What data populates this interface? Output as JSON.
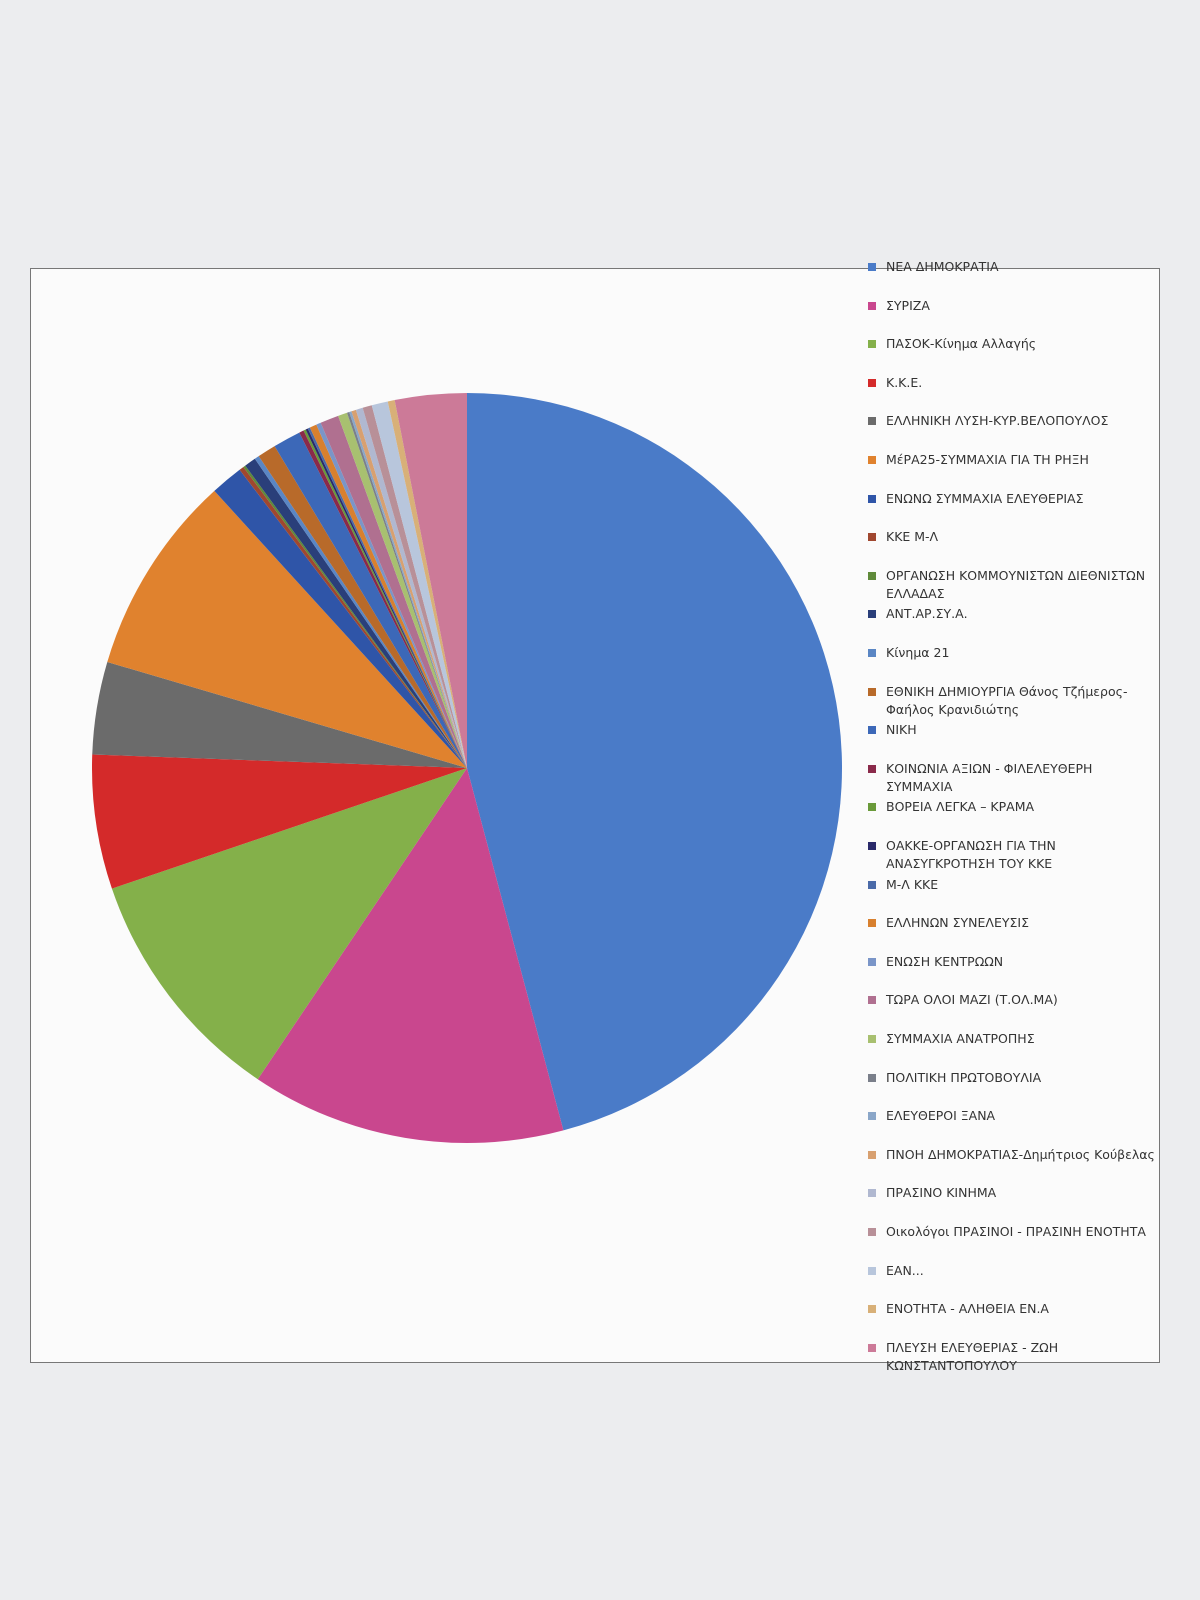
{
  "chart_data": {
    "type": "pie",
    "categories": [
      "ΝΕΑ ΔΗΜΟΚΡΑΤΙΑ",
      "ΣΥΡΙΖΑ",
      "ΠΑΣΟΚ-Κίνημα Αλλαγής",
      "Κ.Κ.Ε.",
      "ΕΛΛΗΝΙΚΗ ΛΥΣΗ-ΚΥΡ.ΒΕΛΟΠΟΥΛΟΣ",
      "ΜέΡΑ25-ΣΥΜΜΑΧΙΑ ΓΙΑ ΤΗ ΡΗΞΗ",
      "ΕΝΩΝΩ ΣΥΜΜΑΧΙΑ ΕΛΕΥΘΕΡΙΑΣ",
      "ΚΚΕ Μ-Λ",
      "ΟΡΓΑΝΩΣΗ ΚΟΜΜΟΥΝΙΣΤΩΝ ΔΙΕΘΝΙΣΤΩΝ ΕΛΛΑΔΑΣ",
      "ΑΝΤ.ΑΡ.ΣΥ.Α.",
      "Κίνημα 21",
      "ΕΘΝΙΚΗ ΔΗΜΙΟΥΡΓΙΑ Θάνος Τζήμερος-Φαήλος Κρανιδιώτης",
      "ΝΙΚΗ",
      "ΚΟΙΝΩΝΙΑ ΑΞΙΩΝ - ΦΙΛΕΛΕΥΘΕΡΗ ΣΥΜΜΑΧΙΑ",
      "ΒΟΡΕΙΑ ΛΕΓΚΑ – ΚΡΑΜΑ",
      "ΟΑΚΚΕ-ΟΡΓΑΝΩΣΗ ΓΙΑ ΤΗΝ ΑΝΑΣΥΓΚΡΟΤΗΣΗ ΤΟΥ ΚΚΕ",
      "Μ-Λ ΚΚΕ",
      "ΕΛΛΗΝΩΝ ΣΥΝΕΛΕΥΣΙΣ",
      "ΕΝΩΣΗ ΚΕΝΤΡΩΩΝ",
      "ΤΩΡΑ ΟΛΟΙ ΜΑΖΙ (Τ.ΟΛ.ΜΑ)",
      "ΣΥΜΜΑΧΙΑ ΑΝΑΤΡΟΠΗΣ",
      "ΠΟΛΙΤΙΚΗ ΠΡΩΤΟΒΟΥΛΙΑ",
      "ΕΛΕΥΘΕΡΟΙ ΞΑΝΑ",
      "ΠΝΟΗ ΔΗΜΟΚΡΑΤΙΑΣ-Δημήτριος Κούβελας",
      "ΠΡΑΣΙΝΟ ΚΙΝΗΜΑ",
      "Οικολόγοι ΠΡΑΣΙΝΟΙ - ΠΡΑΣΙΝΗ ΕΝΟΤΗΤΑ",
      "ΕΑΝ...",
      "ΕΝΟΤΗΤΑ - ΑΛΗΘΕΙΑ ΕΝ.Α",
      "ΠΛΕΥΣΗ ΕΛΕΥΘΕΡΙΑΣ - ΖΩΗ ΚΩΝΣΤΑΝΤΟΠΟΥΛΟΥ"
    ],
    "values": [
      46,
      13.6,
      10.4,
      5.8,
      4,
      8.7,
      1.4,
      0.2,
      0.1,
      0.5,
      0.2,
      0.8,
      1.2,
      0.2,
      0.1,
      0.1,
      0.1,
      0.3,
      0.2,
      0.8,
      0.4,
      0.1,
      0.1,
      0.2,
      0.3,
      0.4,
      0.7,
      0.3,
      3.1
    ],
    "colors": [
      "#4a7bc8",
      "#c9478e",
      "#84b04a",
      "#d42a2a",
      "#6b6b6b",
      "#e0822e",
      "#2f55a8",
      "#a0472f",
      "#5f8a3a",
      "#2a3f7a",
      "#5a86c4",
      "#b86a2a",
      "#3c68b8",
      "#8a2a4a",
      "#6a9a3a",
      "#2a2a6a",
      "#4a6aa8",
      "#d8802e",
      "#7a95c8",
      "#b07090",
      "#a8c070",
      "#7a7f8a",
      "#8aa6c8",
      "#d8a070",
      "#b0b8d0",
      "#b89098",
      "#b8c6dc",
      "#d8b078",
      "#cc7a98"
    ]
  }
}
